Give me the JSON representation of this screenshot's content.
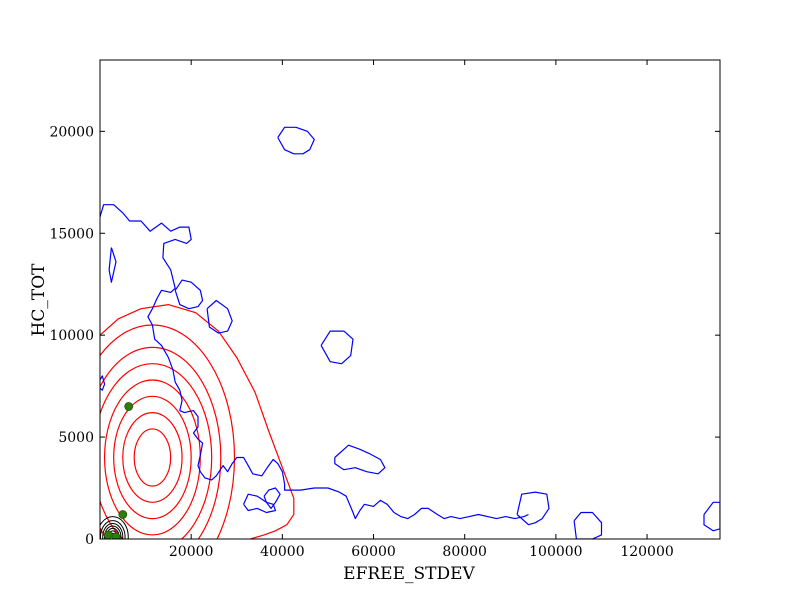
{
  "chart_data": {
    "type": "contour",
    "title": "",
    "xlabel": "EFREE_STDEV",
    "ylabel": "HC_TOT",
    "xlim": [
      0,
      136000
    ],
    "ylim": [
      0,
      23500
    ],
    "grid": false,
    "xticks": [
      20000,
      40000,
      60000,
      80000,
      100000,
      120000
    ],
    "yticks": [
      0,
      5000,
      10000,
      15000,
      20000
    ],
    "xtick_labels": [
      "20000",
      "40000",
      "60000",
      "80000",
      "100000",
      "120000"
    ],
    "ytick_labels": [
      "0",
      "5000",
      "10000",
      "15000",
      "20000"
    ],
    "colors": {
      "blue": "#0000ff",
      "red": "#ff0000",
      "black": "#000000",
      "point": "#2e7d10"
    },
    "red_contours": {
      "center": [
        11500,
        4000
      ],
      "levels": [
        {
          "rx": 4000,
          "ry": 1400
        },
        {
          "rx": 6500,
          "ry": 2200
        },
        {
          "rx": 8500,
          "ry": 3000
        },
        {
          "rx": 10500,
          "ry": 3800
        },
        {
          "rx": 13000,
          "ry": 4600
        },
        {
          "rx": 15000,
          "ry": 5400
        },
        {
          "rx": 18000,
          "ry": 6500
        }
      ],
      "outer_path": [
        [
          0,
          10000
        ],
        [
          4000,
          10800
        ],
        [
          9000,
          11300
        ],
        [
          15000,
          11500
        ],
        [
          21000,
          11100
        ],
        [
          26000,
          10200
        ],
        [
          30000,
          8900
        ],
        [
          34000,
          7200
        ],
        [
          37000,
          5300
        ],
        [
          40000,
          3500
        ],
        [
          42500,
          2000
        ],
        [
          42500,
          1200
        ],
        [
          41000,
          700
        ],
        [
          38500,
          400
        ],
        [
          36000,
          200
        ],
        [
          33000,
          0
        ]
      ]
    },
    "blue_contours": [
      [
        [
          0,
          15800
        ],
        [
          800,
          16400
        ],
        [
          3000,
          16400
        ],
        [
          5000,
          16000
        ],
        [
          6500,
          15600
        ],
        [
          9000,
          15600
        ],
        [
          11000,
          15100
        ],
        [
          13500,
          15500
        ],
        [
          15500,
          15100
        ],
        [
          17500,
          15300
        ],
        [
          19500,
          15300
        ],
        [
          20000,
          14700
        ],
        [
          19000,
          14500
        ],
        [
          16500,
          14700
        ],
        [
          14000,
          14500
        ],
        [
          13800,
          13800
        ],
        [
          15500,
          13200
        ],
        [
          16500,
          12300
        ],
        [
          15500,
          12100
        ],
        [
          13500,
          12200
        ],
        [
          12500,
          11800
        ],
        [
          11500,
          11300
        ],
        [
          10500,
          10900
        ],
        [
          11500,
          10500
        ],
        [
          12000,
          9800
        ],
        [
          13500,
          9500
        ],
        [
          15000,
          8900
        ],
        [
          16000,
          8300
        ],
        [
          16500,
          7700
        ],
        [
          17500,
          7300
        ],
        [
          18000,
          6800
        ],
        [
          17500,
          6300
        ],
        [
          18500,
          6200
        ],
        [
          20500,
          6300
        ],
        [
          21500,
          6000
        ],
        [
          21500,
          5500
        ],
        [
          20500,
          5200
        ],
        [
          21500,
          4900
        ],
        [
          22500,
          4700
        ],
        [
          22000,
          4100
        ],
        [
          21500,
          3600
        ],
        [
          22000,
          3300
        ],
        [
          23000,
          3000
        ],
        [
          24500,
          2900
        ],
        [
          25500,
          3100
        ],
        [
          27000,
          3600
        ],
        [
          28000,
          3300
        ],
        [
          29000,
          3700
        ],
        [
          30000,
          4000
        ],
        [
          31500,
          4000
        ],
        [
          32500,
          3600
        ],
        [
          33500,
          3200
        ],
        [
          35500,
          3100
        ],
        [
          37000,
          3600
        ],
        [
          38000,
          3900
        ],
        [
          39000,
          3700
        ],
        [
          40000,
          3300
        ],
        [
          40500,
          2700
        ],
        [
          40500,
          2400
        ],
        [
          44000,
          2400
        ],
        [
          47000,
          2500
        ],
        [
          50000,
          2500
        ],
        [
          52500,
          2300
        ],
        [
          54000,
          2100
        ],
        [
          55500,
          1300
        ],
        [
          56000,
          1000
        ],
        [
          57000,
          1400
        ],
        [
          58000,
          1700
        ],
        [
          60000,
          1600
        ],
        [
          61500,
          1900
        ],
        [
          63000,
          1700
        ],
        [
          64500,
          1300
        ],
        [
          66000,
          1100
        ],
        [
          67500,
          1000
        ],
        [
          69000,
          1200
        ],
        [
          70500,
          1500
        ],
        [
          72000,
          1500
        ],
        [
          74000,
          1200
        ],
        [
          75500,
          1000
        ],
        [
          77000,
          1100
        ],
        [
          79000,
          1000
        ],
        [
          81000,
          1100
        ],
        [
          83000,
          1200
        ],
        [
          85000,
          1100
        ],
        [
          87000,
          1000
        ],
        [
          89000,
          1100
        ],
        [
          91000,
          1000
        ],
        [
          93000,
          1100
        ],
        [
          94000,
          1200
        ]
      ],
      [
        [
          36000,
          2100
        ],
        [
          37000,
          2400
        ],
        [
          38500,
          2500
        ],
        [
          39500,
          2200
        ],
        [
          38500,
          1800
        ],
        [
          37500,
          1500
        ],
        [
          36500,
          1800
        ],
        [
          36000,
          2100
        ]
      ],
      [
        [
          31500,
          1700
        ],
        [
          32500,
          2200
        ],
        [
          34500,
          2100
        ],
        [
          36500,
          1800
        ],
        [
          38000,
          1700
        ],
        [
          38500,
          1400
        ],
        [
          36500,
          1300
        ],
        [
          34500,
          1500
        ],
        [
          32500,
          1400
        ],
        [
          31500,
          1700
        ]
      ],
      [
        [
          0,
          7800
        ],
        [
          500,
          8000
        ],
        [
          1000,
          7600
        ],
        [
          500,
          7300
        ],
        [
          0,
          7400
        ]
      ],
      [
        [
          2500,
          14300
        ],
        [
          3500,
          13600
        ],
        [
          2500,
          12600
        ],
        [
          2000,
          13200
        ],
        [
          2500,
          14300
        ]
      ],
      [
        [
          16500,
          12200
        ],
        [
          18000,
          12700
        ],
        [
          20000,
          12600
        ],
        [
          22000,
          12200
        ],
        [
          22500,
          11700
        ],
        [
          21500,
          11400
        ],
        [
          19500,
          11300
        ],
        [
          17500,
          11500
        ],
        [
          16500,
          12200
        ]
      ],
      [
        [
          23500,
          11300
        ],
        [
          25500,
          11700
        ],
        [
          28000,
          11300
        ],
        [
          29000,
          10700
        ],
        [
          28000,
          10200
        ],
        [
          26000,
          10100
        ],
        [
          24000,
          10400
        ],
        [
          23500,
          11300
        ]
      ],
      [
        [
          39000,
          19700
        ],
        [
          40500,
          20200
        ],
        [
          43000,
          20200
        ],
        [
          45500,
          20000
        ],
        [
          47000,
          19600
        ],
        [
          46000,
          19100
        ],
        [
          44500,
          18900
        ],
        [
          42500,
          18900
        ],
        [
          40500,
          19100
        ],
        [
          39000,
          19700
        ]
      ],
      [
        [
          48500,
          9500
        ],
        [
          50500,
          10200
        ],
        [
          53500,
          10200
        ],
        [
          55500,
          9800
        ],
        [
          55000,
          9000
        ],
        [
          53000,
          8600
        ],
        [
          50500,
          8700
        ],
        [
          48500,
          9500
        ]
      ],
      [
        [
          51500,
          4000
        ],
        [
          54500,
          4600
        ],
        [
          57000,
          4400
        ],
        [
          59000,
          4200
        ],
        [
          61500,
          3900
        ],
        [
          62500,
          3500
        ],
        [
          61000,
          3200
        ],
        [
          58500,
          3300
        ],
        [
          56000,
          3500
        ],
        [
          53500,
          3400
        ],
        [
          51500,
          3700
        ],
        [
          51500,
          4000
        ]
      ],
      [
        [
          91500,
          1200
        ],
        [
          92500,
          2200
        ],
        [
          95500,
          2300
        ],
        [
          98000,
          2200
        ],
        [
          98500,
          1500
        ],
        [
          97000,
          1000
        ],
        [
          95500,
          800
        ],
        [
          94000,
          700
        ],
        [
          91500,
          1200
        ]
      ],
      [
        [
          104000,
          900
        ],
        [
          105500,
          1300
        ],
        [
          108000,
          1300
        ],
        [
          110000,
          800
        ],
        [
          110000,
          200
        ],
        [
          108000,
          0
        ],
        [
          104500,
          0
        ],
        [
          104000,
          900
        ]
      ],
      [
        [
          132500,
          1200
        ],
        [
          134500,
          1800
        ],
        [
          136000,
          1800
        ],
        [
          136000,
          500
        ],
        [
          134500,
          400
        ],
        [
          132500,
          700
        ],
        [
          132500,
          1200
        ]
      ]
    ],
    "black_contours": {
      "center": [
        2800,
        100
      ],
      "levels": [
        {
          "rx": 600,
          "ry": 180
        },
        {
          "rx": 1000,
          "ry": 300
        },
        {
          "rx": 1400,
          "ry": 420
        },
        {
          "rx": 1800,
          "ry": 540
        },
        {
          "rx": 2200,
          "ry": 660
        },
        {
          "rx": 2700,
          "ry": 800
        },
        {
          "rx": 3400,
          "ry": 1000
        }
      ]
    },
    "points": [
      {
        "x": 6300,
        "y": 6500
      },
      {
        "x": 5000,
        "y": 1200
      },
      {
        "x": 1800,
        "y": 200
      },
      {
        "x": 3500,
        "y": 100
      }
    ]
  }
}
